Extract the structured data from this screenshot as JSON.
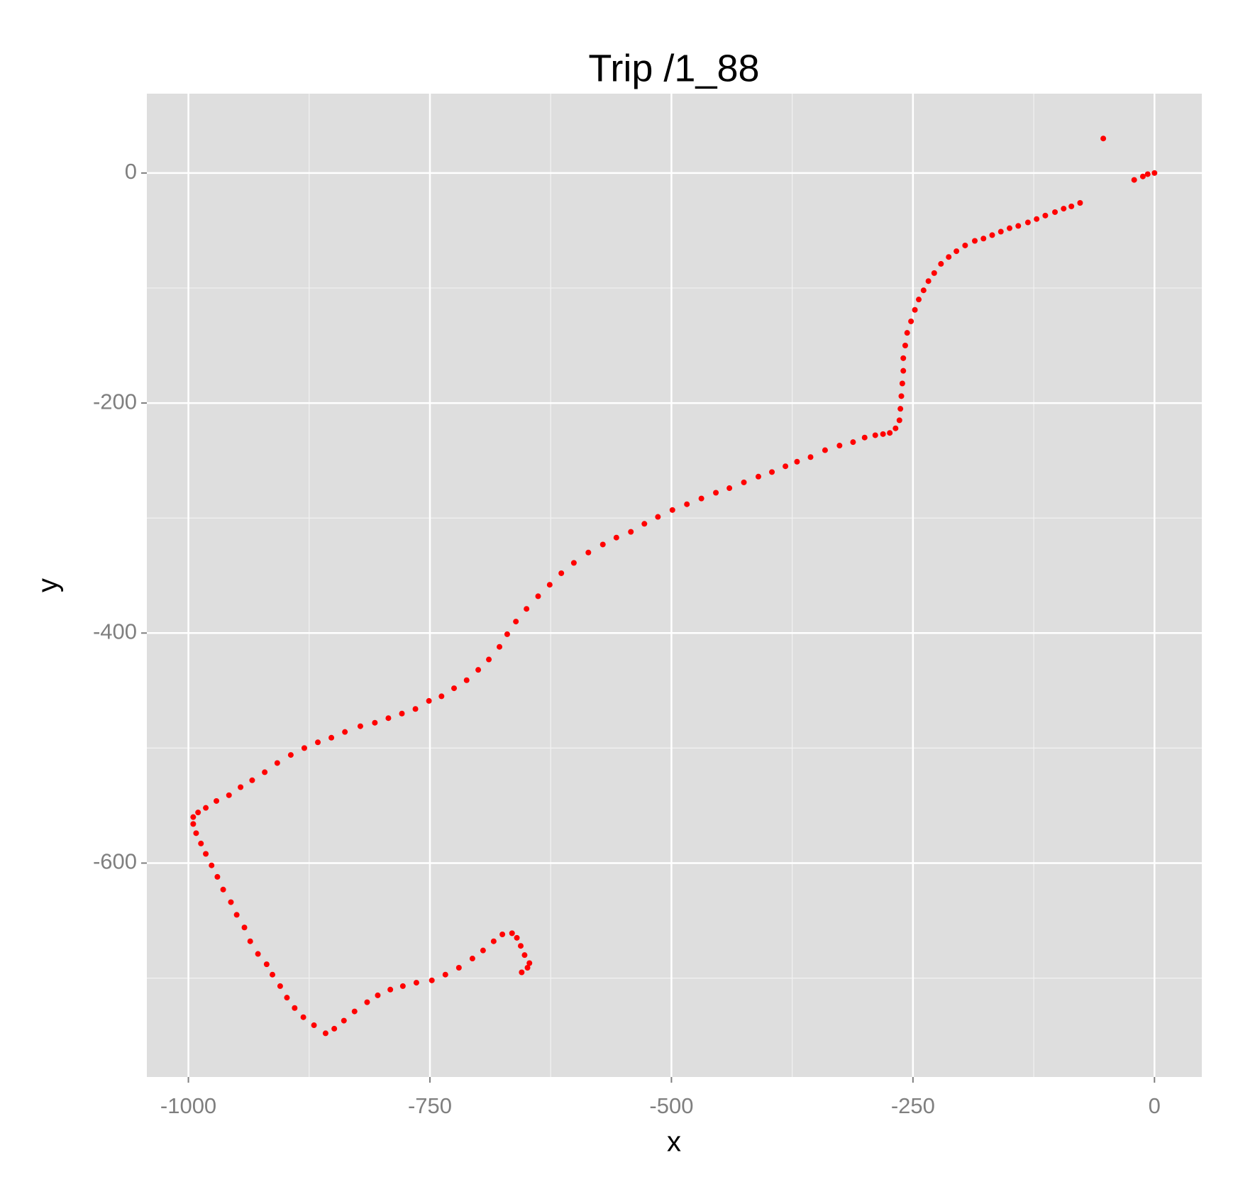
{
  "chart_data": {
    "type": "scatter",
    "title": "Trip /1_88",
    "x_label": "x",
    "y_label": "y",
    "color": "#ff0000",
    "grid": true,
    "xlim": [
      -1043,
      49
    ],
    "ylim": [
      -786,
      69
    ],
    "xticks": [
      -1000,
      -750,
      -500,
      -250,
      0
    ],
    "yticks": [
      0,
      -200,
      -400,
      -600
    ],
    "x_minor_ticks": [
      -875,
      -625,
      -375,
      -125
    ],
    "y_minor_ticks": [
      -100,
      -300,
      -500,
      -700
    ],
    "x": [
      0,
      -7,
      -12,
      -21,
      -53,
      -77,
      -86,
      -94,
      -103,
      -113,
      -122,
      -131,
      -141,
      -150,
      -159,
      -168,
      -177,
      -186,
      -196,
      -205,
      -213,
      -221,
      -228,
      -234,
      -239,
      -244,
      -248,
      -252,
      -256,
      -258,
      -260,
      -260,
      -261,
      -262,
      -263,
      -264,
      -268,
      -274,
      -281,
      -289,
      -300,
      -312,
      -326,
      -341,
      -356,
      -370,
      -382,
      -396,
      -410,
      -425,
      -440,
      -454,
      -469,
      -484,
      -499,
      -514,
      -528,
      -542,
      -557,
      -571,
      -586,
      -601,
      -614,
      -626,
      -638,
      -650,
      -661,
      -670,
      -678,
      -689,
      -700,
      -712,
      -725,
      -738,
      -751,
      -765,
      -779,
      -793,
      -807,
      -822,
      -838,
      -852,
      -866,
      -880,
      -894,
      -908,
      -921,
      -934,
      -946,
      -958,
      -971,
      -982,
      -990,
      -995,
      -995,
      -992,
      -987,
      -982,
      -976,
      -970,
      -964,
      -956,
      -950,
      -942,
      -936,
      -928,
      -919,
      -913,
      -905,
      -898,
      -890,
      -881,
      -870,
      -858,
      -849,
      -839,
      -828,
      -815,
      -804,
      -791,
      -778,
      -764,
      -748,
      -734,
      -720,
      -706,
      -695,
      -684,
      -675,
      -665,
      -660,
      -656,
      -652,
      -647,
      -649,
      -655
    ],
    "values": [
      0,
      -1,
      -3,
      -6,
      30,
      -26,
      -29,
      -31,
      -34,
      -37,
      -40,
      -43,
      -46,
      -48,
      -51,
      -54,
      -57,
      -59,
      -63,
      -68,
      -73,
      -79,
      -87,
      -94,
      -102,
      -110,
      -119,
      -129,
      -139,
      -150,
      -161,
      -172,
      -183,
      -194,
      -205,
      -215,
      -222,
      -226,
      -227,
      -228,
      -230,
      -234,
      -237,
      -241,
      -247,
      -251,
      -255,
      -260,
      -264,
      -269,
      -274,
      -278,
      -283,
      -288,
      -293,
      -299,
      -305,
      -312,
      -317,
      -323,
      -330,
      -339,
      -348,
      -358,
      -368,
      -379,
      -390,
      -401,
      -412,
      -423,
      -432,
      -441,
      -448,
      -455,
      -459,
      -466,
      -470,
      -474,
      -478,
      -481,
      -486,
      -491,
      -495,
      -500,
      -506,
      -513,
      -521,
      -528,
      -534,
      -541,
      -546,
      -552,
      -556,
      -560,
      -566,
      -574,
      -583,
      -592,
      -602,
      -612,
      -623,
      -634,
      -645,
      -656,
      -668,
      -679,
      -688,
      -697,
      -707,
      -717,
      -726,
      -734,
      -741,
      -748,
      -744,
      -737,
      -729,
      -721,
      -715,
      -710,
      -707,
      -704,
      -702,
      -697,
      -691,
      -683,
      -676,
      -668,
      -662,
      -661,
      -665,
      -672,
      -680,
      -687,
      -691,
      -695
    ]
  }
}
